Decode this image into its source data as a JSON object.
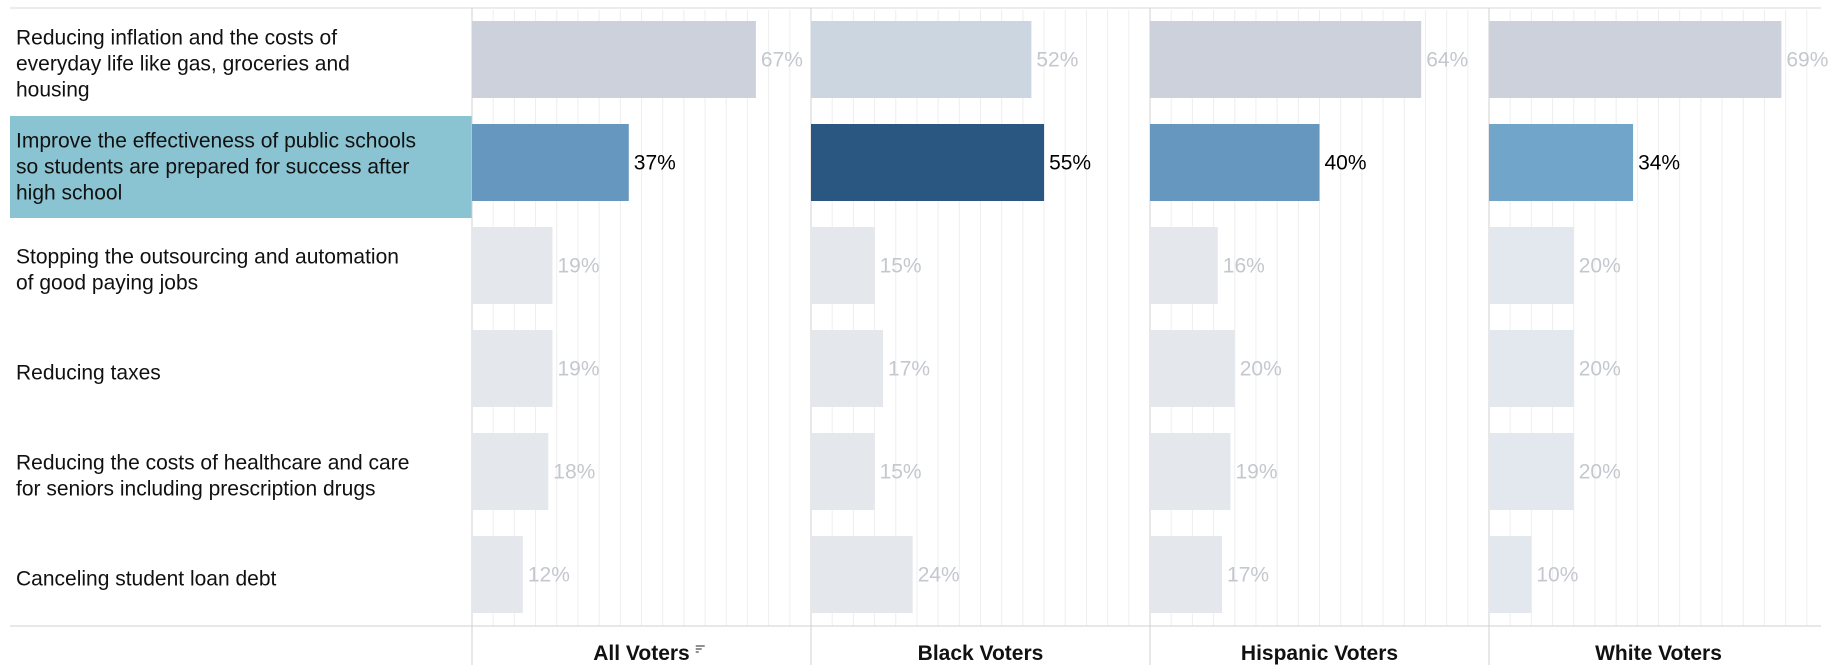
{
  "chart_data": {
    "type": "bar",
    "orientation": "horizontal",
    "categories": [
      "Reducing inflation and the costs of everyday life like gas, groceries and housing",
      "Improve the effectiveness of public schools so students are prepared for success after high school",
      "Stopping the outsourcing and automation of good paying jobs",
      "Reducing taxes",
      "Reducing the costs of healthcare and care for seniors including prescription drugs",
      "Canceling student loan debt"
    ],
    "category_lines": [
      [
        "Reducing inflation and the costs of",
        "everyday life like gas, groceries and",
        "housing"
      ],
      [
        "Improve the effectiveness of public schools",
        "so students are prepared for success after",
        "high school"
      ],
      [
        "Stopping the outsourcing and automation",
        "of good paying jobs"
      ],
      [
        "Reducing taxes"
      ],
      [
        "Reducing the costs of healthcare and care",
        "for seniors including prescription drugs"
      ],
      [
        "Canceling student loan debt"
      ]
    ],
    "highlighted_category_index": 1,
    "series": [
      {
        "name": "All Voters",
        "values": [
          67,
          37,
          19,
          19,
          18,
          12
        ],
        "labels": [
          "67%",
          "37%",
          "19%",
          "19%",
          "18%",
          "12%"
        ],
        "highlight_color": "#6597BF",
        "top_color": "#CDD1DC",
        "dim_color": "#E4E8ED"
      },
      {
        "name": "Black Voters",
        "values": [
          52,
          55,
          15,
          17,
          15,
          24
        ],
        "labels": [
          "52%",
          "55%",
          "15%",
          "17%",
          "15%",
          "24%"
        ],
        "highlight_color": "#2A5781",
        "top_color": "#CBD6E1",
        "dim_color": "#E4E8ED"
      },
      {
        "name": "Hispanic Voters",
        "values": [
          64,
          40,
          16,
          20,
          19,
          17
        ],
        "labels": [
          "64%",
          "40%",
          "16%",
          "20%",
          "19%",
          "17%"
        ],
        "highlight_color": "#6597BF",
        "top_color": "#CDD1DC",
        "dim_color": "#E4E8ED"
      },
      {
        "name": "White Voters",
        "values": [
          69,
          34,
          20,
          20,
          20,
          10
        ],
        "labels": [
          "69%",
          "34%",
          "20%",
          "20%",
          "20%",
          "10%"
        ],
        "highlight_color": "#71A6CA",
        "top_color": "#CDD1DC",
        "dim_color": "#E2E8EE"
      }
    ],
    "xlim": [
      0,
      80
    ],
    "grid": true,
    "sort_icon_on": "All Voters",
    "highlight_row_color": "#8AC3D1",
    "dim_label_color": "#C4C8CE",
    "strong_label_color": "#000000"
  }
}
